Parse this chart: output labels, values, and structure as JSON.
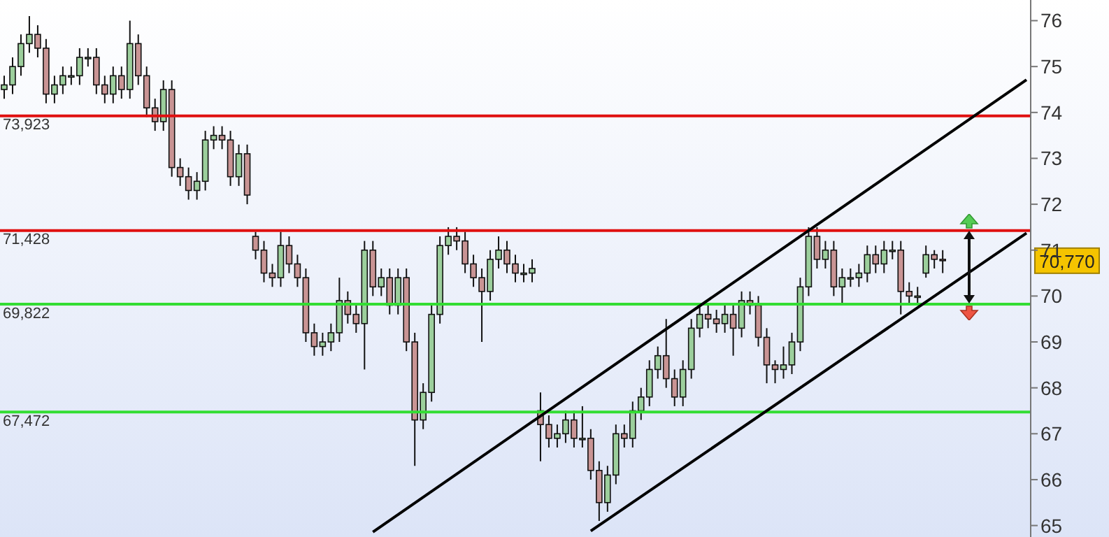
{
  "chart_data": {
    "type": "candlestick",
    "categories": [
      null,
      null,
      null,
      null,
      null,
      null,
      null,
      null,
      null,
      null,
      null,
      null,
      null,
      null,
      null,
      null,
      null,
      null,
      null,
      null,
      null,
      null,
      null,
      null,
      null,
      null,
      null,
      null,
      null,
      null,
      null,
      null,
      null,
      null,
      null,
      null,
      null,
      null,
      null,
      null,
      null,
      null,
      null,
      null,
      null,
      null,
      null,
      null,
      null,
      null,
      null,
      null,
      null,
      null,
      null,
      null,
      null,
      null,
      null,
      null,
      null,
      null,
      null,
      null,
      null,
      null,
      null,
      null,
      null,
      null,
      null,
      null,
      null,
      null,
      null,
      null,
      null,
      null,
      null,
      null,
      null,
      null,
      null,
      null,
      null,
      null,
      null,
      null,
      null,
      null,
      null,
      null,
      null,
      null,
      null,
      null,
      null,
      null,
      null,
      null,
      null,
      null,
      null,
      null,
      null,
      null,
      null,
      null,
      null,
      null,
      null,
      null,
      null,
      null,
      null,
      null,
      null,
      null,
      null,
      null,
      null,
      null,
      null
    ],
    "ohlc": [
      [
        74.5,
        74.8,
        74.3,
        74.6
      ],
      [
        74.6,
        75.2,
        74.4,
        75.0
      ],
      [
        75.0,
        75.7,
        74.8,
        75.5
      ],
      [
        75.5,
        76.1,
        75.3,
        75.7
      ],
      [
        75.7,
        75.9,
        75.2,
        75.4
      ],
      [
        75.4,
        75.6,
        74.2,
        74.4
      ],
      [
        74.4,
        74.8,
        74.2,
        74.6
      ],
      [
        74.6,
        75.0,
        74.4,
        74.8
      ],
      [
        74.8,
        75.0,
        74.6,
        74.8
      ],
      [
        74.8,
        75.4,
        74.6,
        75.2
      ],
      [
        75.2,
        75.4,
        75.0,
        75.2
      ],
      [
        75.2,
        75.4,
        74.4,
        74.6
      ],
      [
        74.6,
        74.8,
        74.2,
        74.4
      ],
      [
        74.4,
        75.0,
        74.2,
        74.8
      ],
      [
        74.8,
        75.0,
        74.3,
        74.5
      ],
      [
        74.5,
        76.0,
        74.3,
        75.5
      ],
      [
        75.5,
        75.7,
        74.6,
        74.8
      ],
      [
        74.8,
        75.0,
        73.9,
        74.1
      ],
      [
        74.1,
        74.3,
        73.6,
        73.8
      ],
      [
        73.8,
        74.7,
        73.6,
        74.5
      ],
      [
        74.5,
        74.7,
        72.6,
        72.8
      ],
      [
        72.8,
        73.0,
        72.4,
        72.6
      ],
      [
        72.6,
        72.8,
        72.1,
        72.3
      ],
      [
        72.3,
        72.7,
        72.1,
        72.5
      ],
      [
        72.5,
        73.6,
        72.3,
        73.4
      ],
      [
        73.4,
        73.7,
        73.2,
        73.5
      ],
      [
        73.5,
        73.7,
        73.2,
        73.4
      ],
      [
        73.4,
        73.6,
        72.4,
        72.6
      ],
      [
        72.6,
        73.3,
        72.4,
        73.1
      ],
      [
        73.1,
        73.3,
        72.0,
        72.2
      ],
      [
        71.3,
        71.4,
        70.8,
        71.0
      ],
      [
        71.0,
        71.2,
        70.3,
        70.5
      ],
      [
        70.5,
        70.7,
        70.2,
        70.4
      ],
      [
        70.4,
        71.4,
        70.2,
        71.1
      ],
      [
        71.1,
        71.3,
        70.5,
        70.7
      ],
      [
        70.7,
        70.9,
        70.2,
        70.4
      ],
      [
        70.4,
        70.6,
        69.0,
        69.2
      ],
      [
        69.2,
        69.4,
        68.7,
        68.9
      ],
      [
        68.9,
        69.2,
        68.7,
        69.0
      ],
      [
        69.0,
        69.4,
        68.8,
        69.2
      ],
      [
        69.2,
        70.4,
        69.0,
        69.9
      ],
      [
        69.9,
        70.1,
        69.4,
        69.6
      ],
      [
        69.6,
        69.8,
        69.2,
        69.4
      ],
      [
        69.4,
        71.2,
        68.4,
        71.0
      ],
      [
        71.0,
        71.2,
        70.0,
        70.2
      ],
      [
        70.2,
        70.6,
        70.0,
        70.4
      ],
      [
        70.4,
        70.6,
        69.6,
        69.8
      ],
      [
        69.8,
        70.6,
        69.6,
        70.4
      ],
      [
        70.4,
        70.6,
        68.8,
        69.0
      ],
      [
        69.0,
        69.2,
        66.3,
        67.3
      ],
      [
        67.3,
        68.1,
        67.1,
        67.9
      ],
      [
        67.9,
        69.8,
        67.7,
        69.6
      ],
      [
        69.6,
        71.3,
        69.4,
        71.1
      ],
      [
        71.1,
        71.5,
        70.9,
        71.3
      ],
      [
        71.3,
        71.5,
        71.0,
        71.2
      ],
      [
        71.2,
        71.4,
        70.5,
        70.7
      ],
      [
        70.7,
        70.9,
        70.2,
        70.4
      ],
      [
        70.4,
        70.6,
        69.0,
        70.1
      ],
      [
        70.1,
        71.0,
        69.9,
        70.8
      ],
      [
        70.8,
        71.3,
        70.6,
        71.0
      ],
      [
        71.0,
        71.2,
        70.5,
        70.7
      ],
      [
        70.7,
        70.9,
        70.3,
        70.5
      ],
      [
        70.5,
        70.7,
        70.3,
        70.5
      ],
      [
        70.5,
        70.8,
        70.3,
        70.6
      ],
      [
        67.5,
        67.9,
        66.4,
        67.2
      ],
      [
        67.2,
        67.4,
        66.7,
        66.9
      ],
      [
        66.9,
        67.2,
        66.7,
        67.0
      ],
      [
        67.0,
        67.5,
        66.8,
        67.3
      ],
      [
        67.3,
        67.5,
        66.7,
        66.9
      ],
      [
        66.9,
        67.6,
        66.7,
        66.9
      ],
      [
        66.9,
        67.1,
        66.0,
        66.2
      ],
      [
        66.2,
        66.4,
        65.1,
        65.5
      ],
      [
        65.5,
        66.3,
        65.3,
        66.1
      ],
      [
        66.1,
        67.2,
        65.9,
        67.0
      ],
      [
        67.0,
        67.2,
        66.7,
        66.9
      ],
      [
        66.9,
        67.7,
        66.7,
        67.5
      ],
      [
        67.5,
        68.0,
        67.3,
        67.8
      ],
      [
        67.8,
        68.6,
        67.6,
        68.4
      ],
      [
        68.4,
        68.9,
        68.2,
        68.7
      ],
      [
        68.7,
        69.5,
        68.0,
        68.2
      ],
      [
        68.2,
        68.4,
        67.6,
        67.8
      ],
      [
        67.8,
        68.6,
        67.6,
        68.4
      ],
      [
        68.4,
        69.5,
        68.2,
        69.3
      ],
      [
        69.3,
        69.8,
        69.1,
        69.6
      ],
      [
        69.6,
        69.8,
        69.3,
        69.5
      ],
      [
        69.5,
        69.7,
        69.2,
        69.4
      ],
      [
        69.4,
        69.8,
        69.2,
        69.6
      ],
      [
        69.6,
        69.8,
        68.7,
        69.3
      ],
      [
        69.3,
        70.1,
        69.1,
        69.9
      ],
      [
        69.9,
        70.1,
        69.6,
        69.8
      ],
      [
        69.8,
        70.0,
        68.9,
        69.1
      ],
      [
        69.1,
        69.3,
        68.1,
        68.5
      ],
      [
        68.5,
        68.6,
        68.1,
        68.4
      ],
      [
        68.4,
        68.9,
        68.2,
        68.5
      ],
      [
        68.5,
        69.2,
        68.3,
        69.0
      ],
      [
        69.0,
        70.4,
        68.8,
        70.2
      ],
      [
        70.2,
        71.5,
        70.0,
        71.3
      ],
      [
        71.3,
        71.5,
        70.6,
        70.8
      ],
      [
        70.8,
        71.2,
        70.6,
        71.0
      ],
      [
        71.0,
        71.2,
        70.0,
        70.2
      ],
      [
        70.2,
        70.6,
        69.8,
        70.4
      ],
      [
        70.4,
        70.6,
        70.2,
        70.4
      ],
      [
        70.4,
        70.7,
        70.2,
        70.5
      ],
      [
        70.5,
        71.1,
        70.3,
        70.9
      ],
      [
        70.9,
        71.1,
        70.5,
        70.7
      ],
      [
        70.7,
        71.2,
        70.5,
        71.0
      ],
      [
        71.0,
        71.2,
        70.8,
        71.0
      ],
      [
        71.0,
        71.2,
        69.6,
        70.1
      ],
      [
        70.1,
        70.3,
        69.8,
        70.0
      ],
      [
        70.0,
        70.2,
        69.8,
        70.0
      ],
      [
        70.5,
        71.1,
        70.4,
        70.9
      ],
      [
        70.9,
        71.0,
        70.6,
        70.8
      ],
      [
        70.8,
        71.0,
        70.5,
        70.77
      ],
      null,
      null,
      null,
      null,
      null,
      null,
      null,
      null,
      null,
      null
    ],
    "series": [
      {
        "type": "line",
        "color": "#000000",
        "values": [
          null,
          null,
          null,
          null,
          null,
          null,
          null,
          null,
          null,
          null,
          null,
          null,
          null,
          null,
          null,
          null,
          null,
          null,
          null,
          null,
          null,
          null,
          null,
          null,
          null,
          null,
          null,
          null,
          null,
          null,
          null,
          null,
          null,
          null,
          null,
          null,
          null,
          null,
          null,
          null,
          null,
          null,
          null,
          null,
          64.86,
          null,
          null,
          null,
          null,
          null,
          null,
          null,
          null,
          null,
          null,
          null,
          null,
          null,
          null,
          null,
          null,
          null,
          null,
          null,
          null,
          null,
          null,
          null,
          null,
          null,
          null,
          null,
          null,
          null,
          null,
          null,
          null,
          null,
          null,
          null,
          null,
          null,
          null,
          null,
          null,
          null,
          null,
          null,
          null,
          null,
          null,
          null,
          null,
          null,
          null,
          null,
          null,
          null,
          null,
          null,
          null,
          null,
          null,
          null,
          null,
          null,
          null,
          null,
          null,
          null,
          null,
          null,
          null,
          null,
          null,
          null,
          null,
          null,
          null,
          null,
          null,
          null,
          74.71
        ]
      },
      {
        "type": "line",
        "color": "#000000",
        "values": [
          null,
          null,
          null,
          null,
          null,
          null,
          null,
          null,
          null,
          null,
          null,
          null,
          null,
          null,
          null,
          null,
          null,
          null,
          null,
          null,
          null,
          null,
          null,
          null,
          null,
          null,
          null,
          null,
          null,
          null,
          null,
          null,
          null,
          null,
          null,
          null,
          null,
          null,
          null,
          null,
          null,
          null,
          null,
          null,
          null,
          null,
          null,
          null,
          null,
          null,
          null,
          null,
          null,
          null,
          null,
          null,
          null,
          null,
          null,
          null,
          null,
          null,
          null,
          null,
          null,
          null,
          null,
          null,
          null,
          null,
          64.88,
          null,
          null,
          null,
          null,
          null,
          null,
          null,
          null,
          null,
          null,
          null,
          null,
          null,
          null,
          null,
          null,
          null,
          null,
          null,
          null,
          null,
          null,
          null,
          null,
          null,
          null,
          null,
          null,
          null,
          null,
          null,
          null,
          null,
          null,
          null,
          null,
          null,
          null,
          null,
          null,
          null,
          null,
          null,
          null,
          null,
          null,
          null,
          null,
          null,
          null,
          null,
          71.37
        ]
      }
    ],
    "ylim": [
      64.75,
      76.45
    ],
    "yticks": [
      65,
      66,
      67,
      68,
      69,
      70,
      71,
      72,
      73,
      74,
      75,
      76
    ],
    "tick_labels": "y",
    "ref_lines": [
      {
        "axis": "y",
        "value": 73.923,
        "label": "73,923",
        "color": "#e01010"
      },
      {
        "axis": "y",
        "value": 71.428,
        "label": "71,428",
        "color": "#e01010"
      },
      {
        "axis": "y",
        "value": 69.822,
        "label": "69,822",
        "color": "#33dd33"
      },
      {
        "axis": "y",
        "value": 67.472,
        "label": "67,472",
        "color": "#33dd33"
      }
    ],
    "annotations": [
      "70,770"
    ]
  }
}
